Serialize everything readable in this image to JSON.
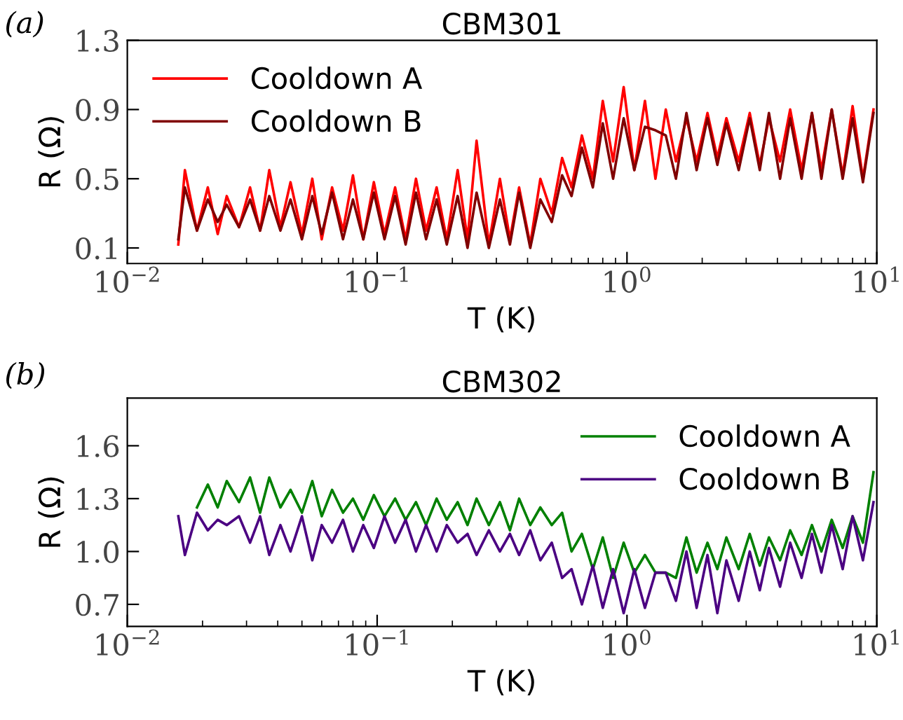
{
  "chart_data": [
    {
      "type": "line",
      "title": "CBM301",
      "xlabel": "T (K)",
      "ylabel": "R (Ω)",
      "annotations": [
        "(a)"
      ],
      "log": "x",
      "legend": "top left",
      "xlim": [
        0.01,
        10
      ],
      "ylim": [
        0.01,
        1.3
      ],
      "xticks": [
        {
          "value": 0.01,
          "label": "10$^{−2}$"
        },
        {
          "value": 0.1,
          "label": "10$^{−1}$"
        },
        {
          "value": 1,
          "label": "10$^{0}$"
        },
        {
          "value": 10,
          "label": "10$^{1}$"
        }
      ],
      "yticks": [
        0.1,
        0.5,
        0.9,
        1.3
      ],
      "x": [
        0.016,
        0.017,
        0.019,
        0.021,
        0.023,
        0.025,
        0.028,
        0.031,
        0.034,
        0.037,
        0.041,
        0.045,
        0.05,
        0.055,
        0.06,
        0.066,
        0.073,
        0.08,
        0.088,
        0.097,
        0.107,
        0.118,
        0.13,
        0.143,
        0.157,
        0.173,
        0.19,
        0.21,
        0.23,
        0.25,
        0.28,
        0.31,
        0.34,
        0.37,
        0.41,
        0.45,
        0.5,
        0.55,
        0.6,
        0.66,
        0.73,
        0.8,
        0.88,
        0.97,
        1.07,
        1.18,
        1.3,
        1.43,
        1.57,
        1.73,
        1.9,
        2.1,
        2.3,
        2.5,
        2.8,
        3.1,
        3.4,
        3.7,
        4.1,
        4.5,
        5.0,
        5.5,
        6.0,
        6.6,
        7.3,
        8.0,
        8.8,
        9.7
      ],
      "series": [
        {
          "name": "Cooldown A",
          "color": "#ff0000",
          "values": [
            0.12,
            0.55,
            0.2,
            0.45,
            0.18,
            0.4,
            0.22,
            0.45,
            0.2,
            0.55,
            0.22,
            0.48,
            0.18,
            0.5,
            0.15,
            0.45,
            0.2,
            0.52,
            0.15,
            0.48,
            0.18,
            0.45,
            0.15,
            0.5,
            0.2,
            0.45,
            0.15,
            0.55,
            0.15,
            0.72,
            0.12,
            0.5,
            0.15,
            0.45,
            0.12,
            0.5,
            0.3,
            0.62,
            0.45,
            0.75,
            0.5,
            0.95,
            0.6,
            1.03,
            0.55,
            0.95,
            0.5,
            0.9,
            0.6,
            0.85,
            0.6,
            0.88,
            0.62,
            0.85,
            0.6,
            0.88,
            0.58,
            0.85,
            0.6,
            0.9,
            0.55,
            0.88,
            0.55,
            0.9,
            0.52,
            0.92,
            0.5,
            0.9
          ]
        },
        {
          "name": "Cooldown B",
          "color": "#800000",
          "values": [
            0.15,
            0.45,
            0.2,
            0.38,
            0.25,
            0.35,
            0.22,
            0.38,
            0.2,
            0.4,
            0.2,
            0.38,
            0.15,
            0.4,
            0.18,
            0.42,
            0.15,
            0.38,
            0.15,
            0.42,
            0.15,
            0.4,
            0.12,
            0.42,
            0.15,
            0.38,
            0.12,
            0.4,
            0.1,
            0.42,
            0.1,
            0.38,
            0.12,
            0.42,
            0.1,
            0.38,
            0.25,
            0.52,
            0.4,
            0.68,
            0.45,
            0.82,
            0.5,
            0.85,
            0.55,
            0.8,
            0.78,
            0.75,
            0.5,
            0.88,
            0.55,
            0.85,
            0.58,
            0.82,
            0.55,
            0.85,
            0.55,
            0.88,
            0.5,
            0.85,
            0.5,
            0.88,
            0.5,
            0.9,
            0.5,
            0.85,
            0.48,
            0.88
          ]
        }
      ]
    },
    {
      "type": "line",
      "title": "CBM302",
      "xlabel": "T (K)",
      "ylabel": "R (Ω)",
      "annotations": [
        "(b)"
      ],
      "log": "x",
      "legend": "top right",
      "xlim": [
        0.01,
        10
      ],
      "ylim": [
        0.575,
        1.87
      ],
      "xticks": [
        {
          "value": 0.01,
          "label": "10$^{−2}$"
        },
        {
          "value": 0.1,
          "label": "10$^{−1}$"
        },
        {
          "value": 1,
          "label": "10$^{0}$"
        },
        {
          "value": 10,
          "label": "10$^{1}$"
        }
      ],
      "yticks": [
        0.7,
        {
          "value": 1,
          "label": "1.0"
        },
        1.3,
        1.6
      ],
      "x": [
        0.016,
        0.017,
        0.019,
        0.021,
        0.023,
        0.025,
        0.028,
        0.031,
        0.034,
        0.037,
        0.041,
        0.045,
        0.05,
        0.055,
        0.06,
        0.066,
        0.073,
        0.08,
        0.088,
        0.097,
        0.107,
        0.118,
        0.13,
        0.143,
        0.157,
        0.173,
        0.19,
        0.21,
        0.23,
        0.25,
        0.28,
        0.31,
        0.34,
        0.37,
        0.41,
        0.45,
        0.5,
        0.55,
        0.6,
        0.66,
        0.73,
        0.8,
        0.88,
        0.97,
        1.07,
        1.18,
        1.3,
        1.43,
        1.57,
        1.73,
        1.9,
        2.1,
        2.3,
        2.5,
        2.8,
        3.1,
        3.4,
        3.7,
        4.1,
        4.5,
        5.0,
        5.5,
        6.0,
        6.6,
        7.3,
        8.0,
        8.8,
        9.7
      ],
      "series": [
        {
          "name": "Cooldown A",
          "color": "#008000",
          "values": [
            null,
            null,
            1.25,
            1.38,
            1.25,
            1.4,
            1.28,
            1.42,
            1.22,
            1.42,
            1.25,
            1.35,
            1.22,
            1.4,
            1.2,
            1.35,
            1.22,
            1.3,
            1.18,
            1.32,
            1.2,
            1.3,
            1.18,
            1.28,
            1.15,
            1.3,
            1.18,
            1.28,
            1.15,
            1.3,
            1.15,
            1.28,
            1.12,
            1.3,
            1.15,
            1.25,
            1.15,
            1.22,
            1.0,
            1.1,
            0.9,
            1.08,
            0.85,
            1.05,
            0.88,
            0.98,
            0.88,
            0.88,
            0.85,
            1.08,
            0.88,
            1.05,
            0.9,
            1.08,
            0.9,
            1.1,
            0.92,
            1.08,
            0.95,
            1.12,
            0.98,
            1.15,
            1.0,
            1.18,
            1.02,
            1.2,
            1.05,
            1.45
          ]
        },
        {
          "name": "Cooldown B",
          "color": "#4b0082",
          "values": [
            1.2,
            0.98,
            1.22,
            1.12,
            1.18,
            1.15,
            1.2,
            1.05,
            1.2,
            0.98,
            1.15,
            1.0,
            1.2,
            0.95,
            1.15,
            1.05,
            1.18,
            1.0,
            1.15,
            1.02,
            1.2,
            1.05,
            1.18,
            1.0,
            1.15,
            1.0,
            1.15,
            1.05,
            1.1,
            0.98,
            1.12,
            1.0,
            1.1,
            0.98,
            1.12,
            0.95,
            1.05,
            0.85,
            0.9,
            0.7,
            0.92,
            0.68,
            0.9,
            0.65,
            0.9,
            0.68,
            0.88,
            0.88,
            0.72,
            1.0,
            0.68,
            0.98,
            0.65,
            0.95,
            0.72,
            1.0,
            0.78,
            1.02,
            0.8,
            1.05,
            0.85,
            1.1,
            0.88,
            1.15,
            0.9,
            1.2,
            0.95,
            1.28
          ]
        }
      ]
    }
  ]
}
